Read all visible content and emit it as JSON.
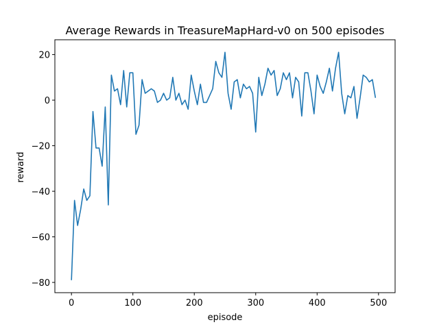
{
  "chart_data": {
    "type": "line",
    "title": "Average Rewards in TreasureMapHard-v0 on 500 episodes",
    "xlabel": "episode",
    "ylabel": "reward",
    "xlim": [
      -27,
      527
    ],
    "ylim": [
      -84.5,
      26.5
    ],
    "x_ticks": [
      0,
      100,
      200,
      300,
      400,
      500
    ],
    "y_ticks": [
      -80,
      -60,
      -40,
      -20,
      0,
      20
    ],
    "grid": false,
    "color": "#1f77b4",
    "series": [
      {
        "x": [
          0,
          5,
          10,
          15,
          20,
          25,
          30,
          35,
          40,
          45,
          50,
          55,
          60,
          65,
          70,
          75,
          80,
          85,
          90,
          95,
          100,
          105,
          110,
          115,
          120,
          125,
          130,
          135,
          140,
          145,
          150,
          155,
          160,
          165,
          170,
          175,
          180,
          185,
          190,
          195,
          200,
          205,
          210,
          215,
          220,
          225,
          230,
          235,
          240,
          245,
          250,
          255,
          260,
          265,
          270,
          275,
          280,
          285,
          290,
          295,
          300,
          305,
          310,
          315,
          320,
          325,
          330,
          335,
          340,
          345,
          350,
          355,
          360,
          365,
          370,
          375,
          380,
          385,
          390,
          395,
          400,
          405,
          410,
          415,
          420,
          425,
          430,
          435,
          440,
          445,
          450,
          455,
          460,
          465,
          470,
          475,
          480,
          485,
          490,
          495
        ],
        "y": [
          -79,
          -44,
          -55,
          -48,
          -39,
          -44,
          -42,
          -5,
          -21,
          -21,
          -29,
          -3,
          -46,
          11,
          4,
          5,
          -2,
          13,
          -3,
          12,
          12,
          -15,
          -11,
          9,
          3,
          4,
          5,
          4,
          -1,
          0,
          3,
          0,
          1,
          10,
          0,
          3,
          -2,
          0,
          -4,
          11,
          4,
          -2,
          7,
          -1,
          -1,
          2,
          5,
          17,
          12,
          10,
          21,
          3,
          -4,
          8,
          9,
          1,
          7,
          5,
          6,
          3,
          -14,
          10,
          2,
          7,
          14,
          11,
          13,
          2,
          5,
          12,
          9,
          12,
          1,
          10,
          8,
          -7,
          12,
          12,
          4,
          -6,
          11,
          6,
          3,
          8,
          14,
          4,
          14,
          21,
          3,
          -6,
          2,
          1,
          6,
          -8,
          1,
          11,
          10,
          8,
          9,
          1
        ]
      }
    ]
  }
}
